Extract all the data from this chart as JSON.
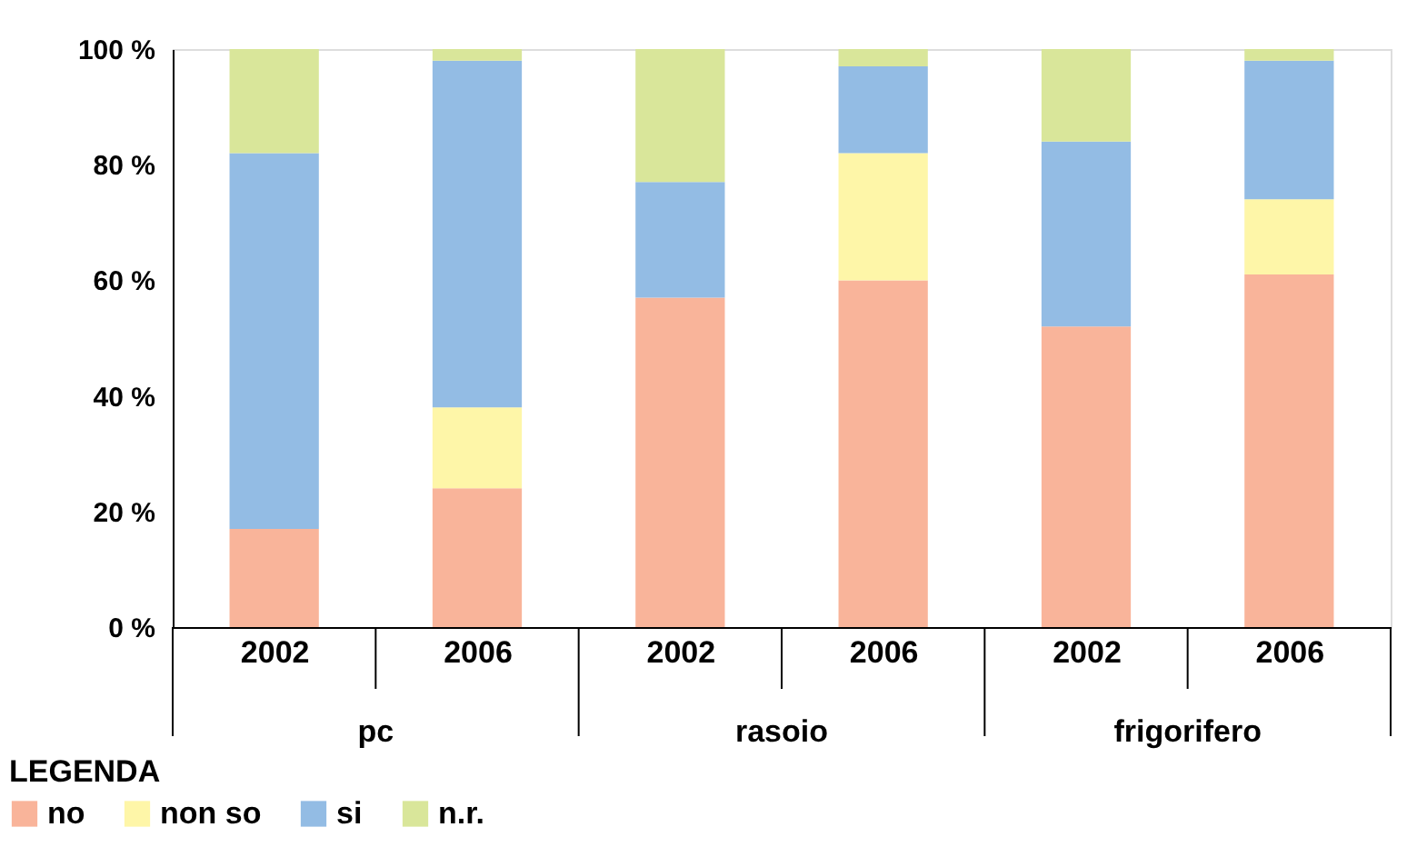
{
  "chart_data": {
    "type": "bar",
    "stacked": true,
    "categories": [
      "2002",
      "2006",
      "2002",
      "2006",
      "2002",
      "2006"
    ],
    "series": [
      {
        "name": "no",
        "color": "#f9b49a",
        "values": [
          17,
          24,
          57,
          60,
          52,
          61
        ]
      },
      {
        "name": "non so",
        "color": "#fef6a8",
        "values": [
          0,
          14,
          0,
          22,
          0,
          13
        ]
      },
      {
        "name": "si",
        "color": "#93bce4",
        "values": [
          65,
          60,
          20,
          15,
          32,
          24
        ]
      },
      {
        "name": "n.r.",
        "color": "#d9e69a",
        "values": [
          18,
          2,
          23,
          3,
          16,
          2
        ]
      }
    ],
    "ylim": [
      0,
      100
    ],
    "yticks": [
      {
        "value": 0,
        "label": "0 %"
      },
      {
        "value": 20,
        "label": "20 %"
      },
      {
        "value": 40,
        "label": "40 %"
      },
      {
        "value": 60,
        "label": "60 %"
      },
      {
        "value": 80,
        "label": "80 %"
      },
      {
        "value": 100,
        "label": "100 %"
      }
    ],
    "annotations": [
      "pc",
      "rasoio",
      "frigorifero"
    ],
    "legend_title": "LEGENDA",
    "legend": "bottom left",
    "grid": false
  }
}
